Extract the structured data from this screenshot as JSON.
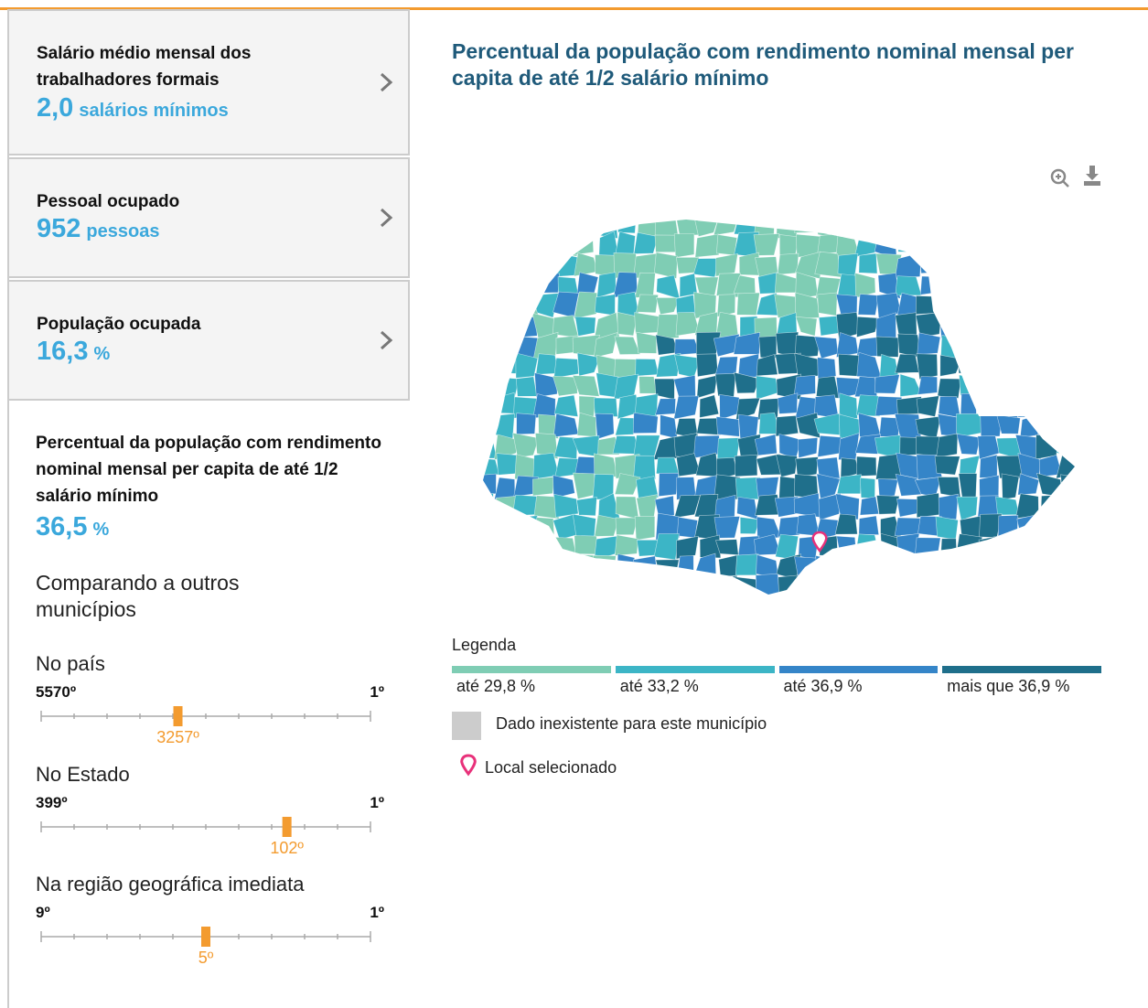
{
  "cards": [
    {
      "title": "Salário médio mensal dos trabalhadores formais",
      "value": "2,0",
      "unit": "salários mínimos"
    },
    {
      "title": "Pessoal ocupado",
      "value": "952",
      "unit": "pessoas"
    },
    {
      "title": "População ocupada",
      "value": "16,3",
      "unit": "%"
    }
  ],
  "indicator": {
    "title": "Percentual da população com rendimento nominal mensal per capita de até 1/2 salário mínimo",
    "value": "36,5",
    "unit": "%"
  },
  "compare_title": "Comparando a outros municípios",
  "rankings": [
    {
      "label": "No país",
      "total": {
        "value": 5570,
        "label": "5570º"
      },
      "best": {
        "value": 1,
        "label": "1º"
      },
      "position": {
        "value": 3257,
        "label": "3257º"
      }
    },
    {
      "label": "No Estado",
      "total": {
        "value": 399,
        "label": "399º"
      },
      "best": {
        "value": 1,
        "label": "1º"
      },
      "position": {
        "value": 102,
        "label": "102º"
      }
    },
    {
      "label": "Na região geográfica imediata",
      "total": {
        "value": 9,
        "label": "9º"
      },
      "best": {
        "value": 1,
        "label": "1º"
      },
      "position": {
        "value": 5,
        "label": "5º"
      }
    }
  ],
  "map": {
    "title": "Percentual da população com rendimento nominal mensal per capita de até 1/2 salário mínimo",
    "legend_title": "Legenda",
    "legend": [
      {
        "label": "até 29,8 %",
        "color": "#7fcdb4"
      },
      {
        "label": "até 33,2 %",
        "color": "#3cb5c6"
      },
      {
        "label": "até 36,9 %",
        "color": "#3585c8"
      },
      {
        "label": "mais que 36,9 %",
        "color": "#1f6f8b"
      }
    ],
    "missing": {
      "label": "Dado inexistente para este município",
      "color": "#cccccc"
    },
    "selected_label": "Local selecionado"
  }
}
